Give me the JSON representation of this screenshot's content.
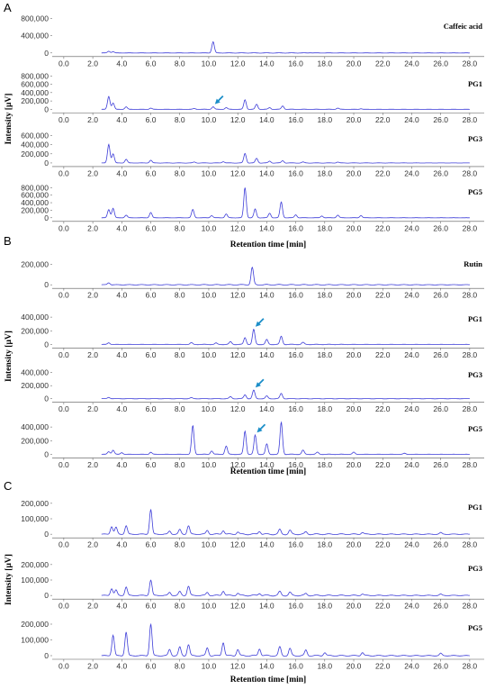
{
  "colors": {
    "trace": "#3d3dd8",
    "arrow": "#1b8ec8",
    "axis": "#555555"
  },
  "chart_data": [
    {
      "panel": "A",
      "type": "line",
      "xlabel": "Retention time [min]",
      "ylabel": "Intensity [µV]",
      "x_ticks": [
        "0.0",
        "2.0",
        "4.0",
        "6.0",
        "8.0",
        "10.0",
        "12.0",
        "14.0",
        "16.0",
        "18.0",
        "20.0",
        "22.0",
        "24.0",
        "26.0",
        "28.0"
      ],
      "xlim": [
        -0.8,
        29.0
      ],
      "series": [
        {
          "name": "Caffeic acid",
          "ylim": [
            -150000,
            850000
          ],
          "y_ticks": [
            "800,000",
            "400,000",
            "0"
          ],
          "y_tick_values": [
            800000,
            400000,
            0
          ],
          "arrow_at": null,
          "peaks": [
            [
              3.1,
              40000
            ],
            [
              3.4,
              30000
            ],
            [
              10.3,
              260000
            ],
            [
              17.0,
              6000
            ]
          ]
        },
        {
          "name": "PG1",
          "ylim": [
            -100000,
            850000
          ],
          "y_ticks": [
            "800,000",
            "600,000",
            "400,000",
            "200,000",
            "0"
          ],
          "y_tick_values": [
            800000,
            600000,
            400000,
            200000,
            0
          ],
          "arrow_at": 10.3,
          "peaks": [
            [
              3.1,
              310000
            ],
            [
              3.4,
              150000
            ],
            [
              4.3,
              60000
            ],
            [
              6.0,
              30000
            ],
            [
              9.0,
              20000
            ],
            [
              10.3,
              60000
            ],
            [
              11.2,
              40000
            ],
            [
              12.5,
              230000
            ],
            [
              13.3,
              120000
            ],
            [
              14.2,
              40000
            ],
            [
              15.1,
              80000
            ],
            [
              18.9,
              30000
            ],
            [
              20.5,
              15000
            ]
          ]
        },
        {
          "name": "PG3",
          "ylim": [
            -100000,
            750000
          ],
          "y_ticks": [
            "600,000",
            "400,000",
            "200,000",
            "0"
          ],
          "y_tick_values": [
            600000,
            400000,
            200000,
            0
          ],
          "arrow_at": null,
          "peaks": [
            [
              3.1,
              410000
            ],
            [
              3.4,
              200000
            ],
            [
              4.3,
              80000
            ],
            [
              6.0,
              60000
            ],
            [
              9.0,
              20000
            ],
            [
              11.0,
              30000
            ],
            [
              12.5,
              210000
            ],
            [
              13.3,
              100000
            ],
            [
              14.2,
              40000
            ],
            [
              15.1,
              50000
            ],
            [
              16.5,
              20000
            ],
            [
              18.9,
              20000
            ]
          ]
        },
        {
          "name": "PG5",
          "ylim": [
            -100000,
            950000
          ],
          "y_ticks": [
            "800,000",
            "600,000",
            "400,000",
            "200,000",
            "0"
          ],
          "y_tick_values": [
            800000,
            600000,
            400000,
            200000,
            0
          ],
          "arrow_at": null,
          "peaks": [
            [
              3.1,
              220000
            ],
            [
              3.4,
              250000
            ],
            [
              4.3,
              70000
            ],
            [
              6.0,
              140000
            ],
            [
              8.9,
              220000
            ],
            [
              10.2,
              60000
            ],
            [
              11.2,
              100000
            ],
            [
              12.5,
              800000
            ],
            [
              13.2,
              230000
            ],
            [
              14.2,
              120000
            ],
            [
              15.0,
              420000
            ],
            [
              16.0,
              80000
            ],
            [
              17.8,
              50000
            ],
            [
              18.9,
              70000
            ],
            [
              20.5,
              60000
            ]
          ]
        }
      ]
    },
    {
      "panel": "B",
      "type": "line",
      "xlabel": "Retention time [min]",
      "ylabel": "Intensity [µV]",
      "x_ticks": [
        "0.0",
        "2.0",
        "4.0",
        "6.0",
        "8.0",
        "10.0",
        "12.0",
        "14.0",
        "16.0",
        "18.0",
        "20.0",
        "22.0",
        "24.0",
        "26.0",
        "28.0"
      ],
      "xlim": [
        -0.8,
        29.0
      ],
      "series": [
        {
          "name": "Rutin",
          "ylim": [
            -60000,
            300000
          ],
          "y_ticks": [
            "200,000",
            "0"
          ],
          "y_tick_values": [
            200000,
            0
          ],
          "arrow_at": null,
          "peaks": [
            [
              3.1,
              20000
            ],
            [
              13.0,
              170000
            ]
          ]
        },
        {
          "name": "PG1",
          "ylim": [
            -60000,
            520000
          ],
          "y_ticks": [
            "400,000",
            "200,000",
            "0"
          ],
          "y_tick_values": [
            400000,
            200000,
            0
          ],
          "arrow_at": 13.1,
          "peaks": [
            [
              3.1,
              25000
            ],
            [
              8.8,
              25000
            ],
            [
              10.5,
              20000
            ],
            [
              11.5,
              40000
            ],
            [
              12.5,
              100000
            ],
            [
              13.1,
              220000
            ],
            [
              14.0,
              70000
            ],
            [
              15.0,
              120000
            ],
            [
              16.5,
              30000
            ]
          ]
        },
        {
          "name": "PG3",
          "ylim": [
            -60000,
            520000
          ],
          "y_ticks": [
            "400,000",
            "200,000",
            "0"
          ],
          "y_tick_values": [
            400000,
            200000,
            0
          ],
          "arrow_at": 13.1,
          "peaks": [
            [
              3.1,
              20000
            ],
            [
              8.8,
              15000
            ],
            [
              11.5,
              30000
            ],
            [
              12.5,
              60000
            ],
            [
              13.1,
              130000
            ],
            [
              14.0,
              40000
            ],
            [
              15.0,
              80000
            ]
          ]
        },
        {
          "name": "PG5",
          "ylim": [
            -60000,
            520000
          ],
          "y_ticks": [
            "400,000",
            "200,000",
            "0"
          ],
          "y_tick_values": [
            400000,
            200000,
            0
          ],
          "arrow_at": 13.2,
          "peaks": [
            [
              3.1,
              40000
            ],
            [
              3.4,
              60000
            ],
            [
              4.0,
              25000
            ],
            [
              6.0,
              30000
            ],
            [
              8.9,
              420000
            ],
            [
              10.2,
              50000
            ],
            [
              11.2,
              120000
            ],
            [
              12.5,
              340000
            ],
            [
              13.2,
              280000
            ],
            [
              14.0,
              150000
            ],
            [
              15.0,
              470000
            ],
            [
              16.5,
              60000
            ],
            [
              17.5,
              30000
            ],
            [
              20.0,
              30000
            ],
            [
              23.5,
              15000
            ]
          ]
        }
      ]
    },
    {
      "panel": "C",
      "type": "line",
      "xlabel": "Retention time [min]",
      "ylabel": "Intensity [µV]",
      "x_ticks": [
        "0.0",
        "2.0",
        "4.0",
        "6.0",
        "8.0",
        "10.0",
        "12.0",
        "14.0",
        "16.0",
        "18.0",
        "20.0",
        "22.0",
        "24.0",
        "26.0",
        "28.0"
      ],
      "xlim": [
        -0.8,
        29.0
      ],
      "series": [
        {
          "name": "PG1",
          "ylim": [
            -40000,
            240000
          ],
          "y_ticks": [
            "200,000",
            "100,000",
            "0"
          ],
          "y_tick_values": [
            200000,
            100000,
            0
          ],
          "arrow_at": null,
          "peaks": [
            [
              3.3,
              50000
            ],
            [
              3.6,
              45000
            ],
            [
              4.3,
              55000
            ],
            [
              6.0,
              160000
            ],
            [
              7.3,
              20000
            ],
            [
              8.0,
              30000
            ],
            [
              8.6,
              55000
            ],
            [
              9.9,
              25000
            ],
            [
              11.0,
              25000
            ],
            [
              12.0,
              15000
            ],
            [
              13.5,
              20000
            ],
            [
              14.9,
              30000
            ],
            [
              15.6,
              25000
            ],
            [
              16.7,
              15000
            ],
            [
              20.6,
              12000
            ],
            [
              26.0,
              10000
            ]
          ]
        },
        {
          "name": "PG3",
          "ylim": [
            -40000,
            240000
          ],
          "y_ticks": [
            "200,000",
            "100,000",
            "0"
          ],
          "y_tick_values": [
            200000,
            100000,
            0
          ],
          "arrow_at": null,
          "peaks": [
            [
              3.3,
              45000
            ],
            [
              3.6,
              35000
            ],
            [
              4.3,
              55000
            ],
            [
              6.0,
              100000
            ],
            [
              7.3,
              20000
            ],
            [
              8.0,
              25000
            ],
            [
              8.6,
              60000
            ],
            [
              9.9,
              20000
            ],
            [
              11.0,
              30000
            ],
            [
              12.0,
              15000
            ],
            [
              13.5,
              15000
            ],
            [
              14.9,
              25000
            ],
            [
              15.6,
              20000
            ],
            [
              16.7,
              12000
            ],
            [
              20.6,
              10000
            ],
            [
              26.0,
              8000
            ]
          ]
        },
        {
          "name": "PG5",
          "ylim": [
            -40000,
            240000
          ],
          "y_ticks": [
            "200,000",
            "100,000",
            "0"
          ],
          "y_tick_values": [
            200000,
            100000,
            0
          ],
          "arrow_at": null,
          "peaks": [
            [
              3.4,
              130000
            ],
            [
              4.3,
              150000
            ],
            [
              6.0,
              200000
            ],
            [
              7.3,
              40000
            ],
            [
              8.0,
              55000
            ],
            [
              8.6,
              70000
            ],
            [
              9.9,
              50000
            ],
            [
              11.0,
              85000
            ],
            [
              12.0,
              40000
            ],
            [
              13.5,
              45000
            ],
            [
              14.9,
              55000
            ],
            [
              15.6,
              45000
            ],
            [
              16.7,
              35000
            ],
            [
              18.0,
              20000
            ],
            [
              20.6,
              20000
            ],
            [
              26.0,
              15000
            ]
          ]
        }
      ]
    }
  ]
}
